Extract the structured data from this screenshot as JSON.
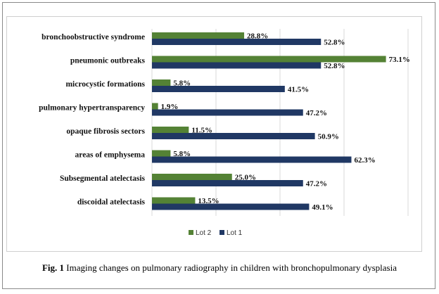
{
  "chart_data": {
    "type": "bar",
    "orientation": "horizontal",
    "categories": [
      "bronchoobstructive syndrome",
      "pneumonic outbreaks",
      "microcystic formations",
      "pulmonary hypertransparency",
      "opaque fibrosis sectors",
      "areas of emphysema",
      "Subsegmental atelectasis",
      "discoidal atelectasis"
    ],
    "series": [
      {
        "name": "Lot 2",
        "color": "#548235",
        "values": [
          28.8,
          73.1,
          5.8,
          1.9,
          11.5,
          5.8,
          25.0,
          13.5
        ],
        "labels": [
          "28.8%",
          "73.1%",
          "5.8%",
          "1.9%",
          "11.5%",
          "5.8%",
          "25.0%",
          "13.5%"
        ]
      },
      {
        "name": "Lot 1",
        "color": "#203864",
        "values": [
          52.8,
          52.8,
          41.5,
          47.2,
          50.9,
          62.3,
          47.2,
          49.1
        ],
        "labels": [
          "52.8%",
          "52.8%",
          "41.5%",
          "47.2%",
          "50.9%",
          "62.3%",
          "47.2%",
          "49.1%"
        ]
      }
    ],
    "xlim": [
      0,
      80
    ],
    "grid": true,
    "legend_position": "bottom-left"
  },
  "caption": {
    "label": "Fig. 1",
    "text": " Imaging changes on pulmonary radiography in children with bronchopulmonary dysplasia"
  }
}
